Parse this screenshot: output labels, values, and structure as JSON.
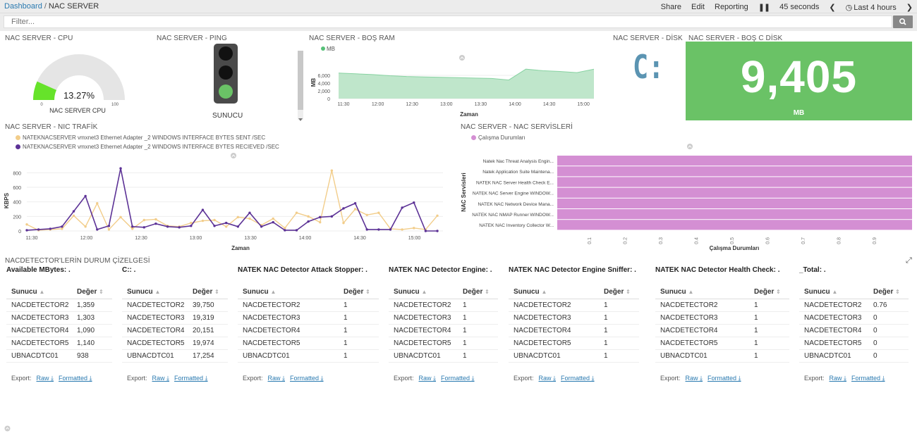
{
  "breadcrumb": {
    "home": "Dashboard",
    "current": "NAC SERVER"
  },
  "toolbar": {
    "share": "Share",
    "edit": "Edit",
    "reporting": "Reporting",
    "interval": "45 seconds",
    "timerange": "Last 4 hours"
  },
  "filter": {
    "placeholder": "Filter..."
  },
  "panels": {
    "cpu": {
      "title": "NAC SERVER - CPU",
      "value": "13.27%",
      "fraction": 0.1327,
      "label": "NAC SERVER CPU",
      "min": "0",
      "max": "100"
    },
    "ping": {
      "title": "NAC SERVER - PING",
      "label": "SUNUCU"
    },
    "ram": {
      "title": "NAC SERVER - BOŞ RAM"
    },
    "disk": {
      "title": "NAC SERVER - DİSK",
      "label": "C:"
    },
    "diskfree": {
      "title": "NAC SERVER - BOŞ C DİSK",
      "value": "9,405",
      "unit": "MB"
    },
    "nic": {
      "title": "NAC SERVER - NIC TRAFİK"
    },
    "services": {
      "title": "NAC SERVER - NAC SERVİSLERİ"
    },
    "detectors": {
      "title": "NACDETECTOR'LERİN DURUM ÇİZELGESİ"
    }
  },
  "colors": {
    "green": "#6ac266",
    "ramFill": "#bfe6cb",
    "ramLine": "#88d3a2",
    "sent": "#f2cd8a",
    "recv": "#5c3296",
    "svc": "#d48fd3"
  },
  "chart_data": [
    {
      "type": "area",
      "legend": [
        "MB"
      ],
      "xlabel": "Zaman",
      "ylabel": "MB",
      "x": [
        "11:30",
        "11:45",
        "12:00",
        "12:15",
        "12:30",
        "12:45",
        "13:00",
        "13:15",
        "13:30",
        "13:45",
        "14:00",
        "14:15",
        "14:30",
        "14:45",
        "15:00",
        "15:10"
      ],
      "xticks": [
        "11:30",
        "12:00",
        "12:30",
        "13:00",
        "13:30",
        "14:00",
        "14:30",
        "15:00"
      ],
      "yticks": [
        "6,000",
        "4,000",
        "2,000",
        "0"
      ],
      "values": [
        6600,
        6400,
        6200,
        5900,
        5700,
        5600,
        5500,
        5400,
        5300,
        5200,
        4800,
        7600,
        7200,
        7000,
        6700,
        7600
      ],
      "ylim": [
        0,
        8000
      ]
    },
    {
      "type": "line",
      "xlabel": "Zaman",
      "ylabel": "KBPS",
      "xticks": [
        "11:30",
        "12:00",
        "12:30",
        "13:00",
        "13:30",
        "14:00",
        "14:30",
        "15:00"
      ],
      "yticks": [
        "800",
        "600",
        "400",
        "200",
        "0"
      ],
      "ylim": [
        0,
        900
      ],
      "series": [
        {
          "name": "NATEKNACSERVER vmxnet3 Ethernet Adapter _2 WINDOWS INTERFACE BYTES SENT /SEC",
          "values": [
            90,
            10,
            20,
            30,
            210,
            60,
            380,
            20,
            190,
            30,
            150,
            160,
            70,
            60,
            110,
            140,
            150,
            60,
            190,
            170,
            80,
            170,
            40,
            250,
            200,
            120,
            830,
            110,
            300,
            220,
            250,
            30,
            20,
            40,
            20,
            210
          ]
        },
        {
          "name": "NATEKNACSERVER vmxnet3 Ethernet Adapter _2 WINDOWS INTERFACE BYTES RECIEVED /SEC",
          "values": [
            10,
            20,
            30,
            60,
            270,
            480,
            20,
            70,
            860,
            60,
            50,
            100,
            60,
            50,
            70,
            290,
            70,
            110,
            60,
            250,
            60,
            120,
            10,
            10,
            130,
            190,
            200,
            310,
            380,
            20,
            20,
            20,
            320,
            390,
            0,
            0
          ]
        }
      ]
    },
    {
      "type": "bar",
      "orientation": "horizontal",
      "legend": [
        "Çalışma Durumları"
      ],
      "xlabel": "Çalışma Durumları",
      "ylabel": "NAC Servisleri",
      "categories": [
        "Natek Nac Threat Analysis Engin...",
        "Natek Application Suite Maintena...",
        "NATEK NAC Server Health Check E...",
        "NATEK NAC Server Engine WINDOW...",
        "NATEK NAC Network Device Mana...",
        "NATEK NAC NMAP Runner WINDOW...",
        "NATEK NAC Inventory Collector W..."
      ],
      "values": [
        1,
        1,
        1,
        1,
        1,
        1,
        1
      ],
      "xticks": [
        "0.1",
        "0.2",
        "0.3",
        "0.4",
        "0.5",
        "0.6",
        "0.7",
        "0.8",
        "0.9"
      ],
      "xlim": [
        0,
        1
      ]
    }
  ],
  "tables": [
    {
      "title": "Available MBytes: .",
      "values": [
        "1,359",
        "1,303",
        "1,090",
        "1,140",
        "938"
      ]
    },
    {
      "title": "C:: .",
      "values": [
        "39,750",
        "19,319",
        "20,151",
        "19,974",
        "17,254"
      ]
    },
    {
      "title": "NATEK NAC Detector Attack Stopper: .",
      "values": [
        "1",
        "1",
        "1",
        "1",
        "1"
      ]
    },
    {
      "title": "NATEK NAC Detector Engine: .",
      "values": [
        "1",
        "1",
        "1",
        "1",
        "1"
      ]
    },
    {
      "title": "NATEK NAC Detector Engine Sniffer: .",
      "values": [
        "1",
        "1",
        "1",
        "1",
        "1"
      ]
    },
    {
      "title": "NATEK NAC Detector Health Check: .",
      "values": [
        "1",
        "1",
        "1",
        "1",
        "1"
      ]
    },
    {
      "title": "_Total: .",
      "values": [
        "0.76",
        "0",
        "0",
        "0",
        "0"
      ]
    }
  ],
  "table_common": {
    "col1": "Sunucu",
    "col2": "Değer",
    "hosts": [
      "NACDETECTOR2",
      "NACDETECTOR3",
      "NACDETECTOR4",
      "NACDETECTOR5",
      "UBNACDTC01"
    ],
    "export": "Export:",
    "raw": "Raw",
    "formatted": "Formatted"
  }
}
